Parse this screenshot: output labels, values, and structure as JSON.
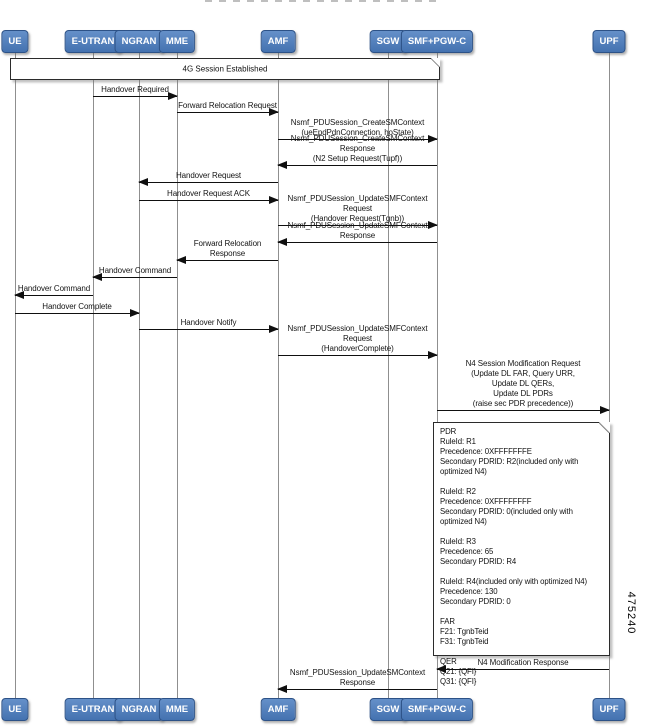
{
  "figure_number": "475240",
  "actors": [
    {
      "label": "UE"
    },
    {
      "label": "E-UTRAN"
    },
    {
      "label": "NGRAN"
    },
    {
      "label": "MME"
    },
    {
      "label": "AMF"
    },
    {
      "label": "SGW"
    },
    {
      "label": "SMF+PGW-C"
    },
    {
      "label": "UPF"
    }
  ],
  "banner_note": {
    "text": "4G Session Established"
  },
  "messages": [
    {
      "from": "E-UTRAN",
      "to": "MME",
      "label": [
        "Handover Required"
      ]
    },
    {
      "from": "MME",
      "to": "AMF",
      "label": [
        "Forward Relocation Request"
      ]
    },
    {
      "from": "AMF",
      "to": "SMF+PGW-C",
      "label": [
        "Nsmf_PDUSession_CreateSMContext",
        "(ueEpdPdnConnection, hoState)"
      ]
    },
    {
      "from": "SMF+PGW-C",
      "to": "AMF",
      "label": [
        "Nsmf_PDUSession_CreateSMContext Response",
        "(N2 Setup Request(Tupf))"
      ]
    },
    {
      "from": "AMF",
      "to": "NGRAN",
      "label": [
        "Handover Request"
      ]
    },
    {
      "from": "NGRAN",
      "to": "AMF",
      "label": [
        "Handover Request ACK"
      ]
    },
    {
      "from": "AMF",
      "to": "SMF+PGW-C",
      "label": [
        "Nsmf_PDUSession_UpdateSMFContext Request",
        "(Handover Request(Tgnb))"
      ]
    },
    {
      "from": "SMF+PGW-C",
      "to": "AMF",
      "label": [
        "Nsmf_PDUSession_UpdateSMFContext Response"
      ]
    },
    {
      "from": "AMF",
      "to": "MME",
      "label": [
        "Forward Relocation Response"
      ]
    },
    {
      "from": "MME",
      "to": "E-UTRAN",
      "label": [
        "Handover Command"
      ]
    },
    {
      "from": "E-UTRAN",
      "to": "UE",
      "label": [
        "Handover Command"
      ]
    },
    {
      "from": "UE",
      "to": "NGRAN",
      "label": [
        "Handover Complete"
      ]
    },
    {
      "from": "NGRAN",
      "to": "AMF",
      "label": [
        "Handover Notify"
      ]
    },
    {
      "from": "AMF",
      "to": "SMF+PGW-C",
      "label": [
        "Nsmf_PDUSession_UpdateSMFContext Request",
        "(HandoverComplete)"
      ]
    },
    {
      "from": "SMF+PGW-C",
      "to": "UPF",
      "label": [
        "N4 Session Modification Request",
        "(Update DL FAR, Query URR,",
        "Update DL QERs,",
        "Update DL PDRs",
        "(raise sec PDR precedence))"
      ]
    },
    {
      "from": "UPF",
      "to": "SMF+PGW-C",
      "label": [
        "N4 Modification Response"
      ]
    },
    {
      "from": "SMF+PGW-C",
      "to": "AMF",
      "label": [
        "Nsmf_PDUSession_UpdateSMContext Response"
      ]
    }
  ],
  "detail_note": {
    "lines": [
      "PDR",
      "RuleId: R1",
      "Precedence: 0XFFFFFFFE",
      "Secondary PDRID: R2(included only with optimized N4)",
      "",
      "RuleId: R2",
      "Precedence: 0XFFFFFFFF",
      "Secondary PDRID: 0(included only with optimized N4)",
      "",
      "RuleId: R3",
      "Precedence: 65",
      "Secondary PDRID: R4",
      "",
      "RuleId: R4(included only with optimized N4)",
      "Precedence: 130",
      "Secondary PDRID: 0",
      "",
      "FAR",
      "F21: TgnbTeid",
      "F31: TgnbTeid",
      "",
      "QER",
      "Q21: {QFI}",
      "Q31: {QFI}"
    ]
  }
}
